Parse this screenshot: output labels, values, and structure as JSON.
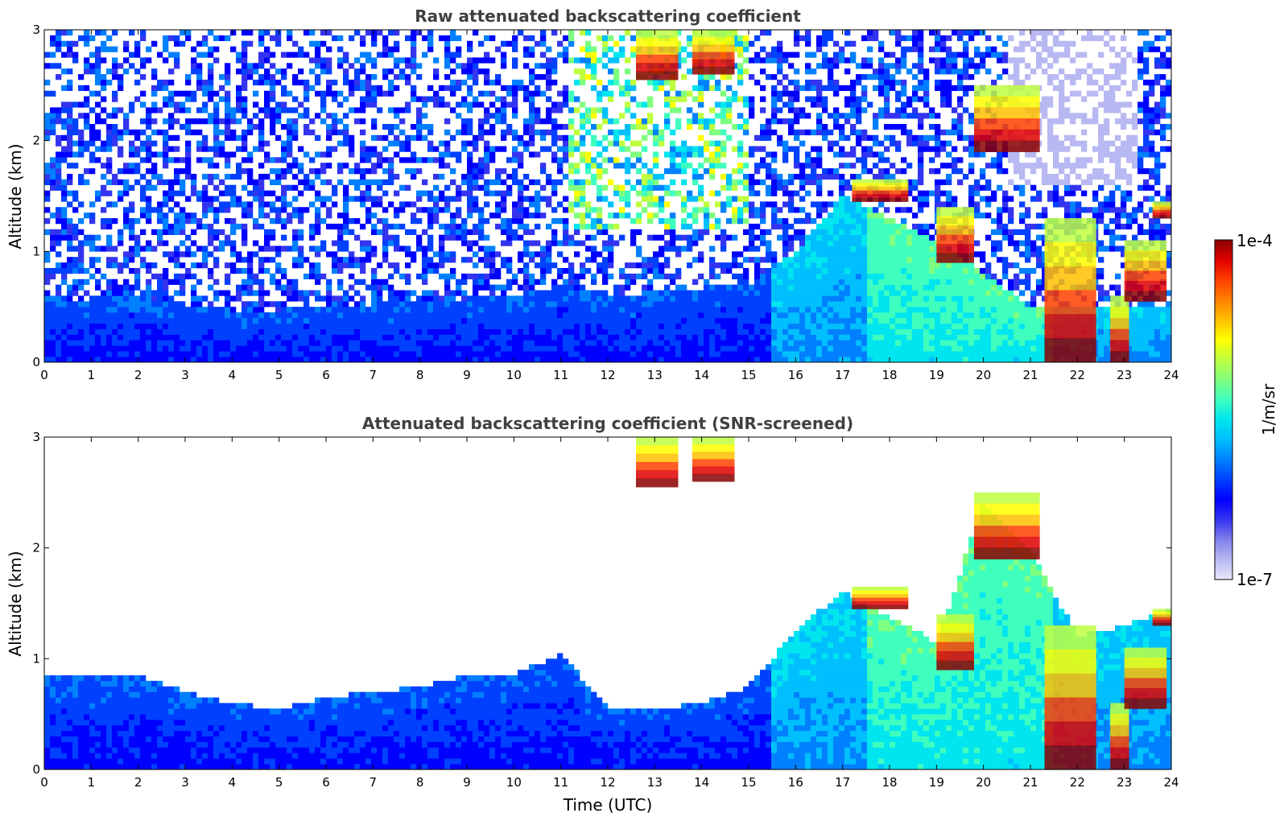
{
  "chart_data": [
    {
      "type": "heatmap",
      "title": "Raw attenuated backscattering coefficient",
      "xlabel": "",
      "ylabel": "Altitude (km)",
      "xlim": [
        0,
        24
      ],
      "ylim": [
        0,
        3
      ],
      "xticks": [
        "0",
        "1",
        "2",
        "3",
        "4",
        "5",
        "6",
        "7",
        "8",
        "9",
        "10",
        "11",
        "12",
        "13",
        "14",
        "15",
        "16",
        "17",
        "18",
        "19",
        "20",
        "21",
        "22",
        "23",
        "24"
      ],
      "yticks": [
        "0",
        "1",
        "2",
        "3"
      ],
      "colorscale": "jet, log10",
      "features": {
        "boundary_layer_top_km": [
          [
            0,
            0.55
          ],
          [
            2,
            0.6
          ],
          [
            4,
            0.45
          ],
          [
            6,
            0.5
          ],
          [
            8,
            0.55
          ],
          [
            10,
            0.6
          ],
          [
            11,
            0.7
          ],
          [
            12,
            0.6
          ],
          [
            15,
            0.7
          ],
          [
            16,
            1.0
          ],
          [
            17,
            1.5
          ],
          [
            19,
            1.1
          ],
          [
            21,
            0.5
          ],
          [
            24,
            0.5
          ]
        ],
        "cloud_layers": [
          {
            "t_start": 12.6,
            "t_end": 13.5,
            "base_km": 2.55,
            "top_km": 3.0
          },
          {
            "t_start": 13.8,
            "t_end": 14.7,
            "base_km": 2.6,
            "top_km": 3.0
          },
          {
            "t_start": 17.2,
            "t_end": 18.4,
            "base_km": 1.45,
            "top_km": 1.65
          },
          {
            "t_start": 19.0,
            "t_end": 19.8,
            "base_km": 0.9,
            "top_km": 1.4
          },
          {
            "t_start": 19.8,
            "t_end": 21.2,
            "base_km": 1.9,
            "top_km": 2.5
          },
          {
            "t_start": 21.3,
            "t_end": 22.4,
            "base_km": 0.0,
            "top_km": 1.3
          },
          {
            "t_start": 22.7,
            "t_end": 23.1,
            "base_km": 0.0,
            "top_km": 0.6
          },
          {
            "t_start": 23.0,
            "t_end": 23.9,
            "base_km": 0.55,
            "top_km": 1.1
          },
          {
            "t_start": 23.6,
            "t_end": 24.0,
            "base_km": 1.3,
            "top_km": 1.45
          }
        ]
      }
    },
    {
      "type": "heatmap",
      "title": "Attenuated backscattering coefficient (SNR-screened)",
      "xlabel": "Time (UTC)",
      "ylabel": "Altitude (km)",
      "xlim": [
        0,
        24
      ],
      "ylim": [
        0,
        3
      ],
      "xticks": [
        "0",
        "1",
        "2",
        "3",
        "4",
        "5",
        "6",
        "7",
        "8",
        "9",
        "10",
        "11",
        "12",
        "13",
        "14",
        "15",
        "16",
        "17",
        "18",
        "19",
        "20",
        "21",
        "22",
        "23",
        "24"
      ],
      "yticks": [
        "0",
        "1",
        "2",
        "3"
      ],
      "colorscale": "jet, log10",
      "features": {
        "screened_top_km": [
          [
            0,
            0.85
          ],
          [
            1,
            0.85
          ],
          [
            2,
            0.85
          ],
          [
            3,
            0.7
          ],
          [
            4,
            0.6
          ],
          [
            5,
            0.55
          ],
          [
            6,
            0.65
          ],
          [
            7,
            0.7
          ],
          [
            8,
            0.75
          ],
          [
            9,
            0.85
          ],
          [
            10,
            0.85
          ],
          [
            11,
            1.05
          ],
          [
            12,
            0.55
          ],
          [
            13,
            0.55
          ],
          [
            14,
            0.6
          ],
          [
            15,
            0.75
          ],
          [
            16,
            1.25
          ],
          [
            17,
            1.6
          ],
          [
            19,
            1.15
          ],
          [
            20,
            2.4
          ],
          [
            21,
            2.0
          ],
          [
            22,
            1.2
          ],
          [
            23,
            1.3
          ],
          [
            24,
            1.45
          ]
        ]
      }
    }
  ],
  "colorbar": {
    "label": "1/m/sr",
    "max_label": "1e-4",
    "min_label": "1e-7",
    "colors": [
      "#e8e8fa",
      "#b8b8f2",
      "#8080ec",
      "#3434f0",
      "#0000ff",
      "#0040ff",
      "#0080ff",
      "#00bfff",
      "#00e5ee",
      "#3fffbf",
      "#7fff7f",
      "#bfff3f",
      "#ffff00",
      "#ffbf00",
      "#ff8000",
      "#ff4000",
      "#e00000",
      "#8b0000"
    ]
  }
}
